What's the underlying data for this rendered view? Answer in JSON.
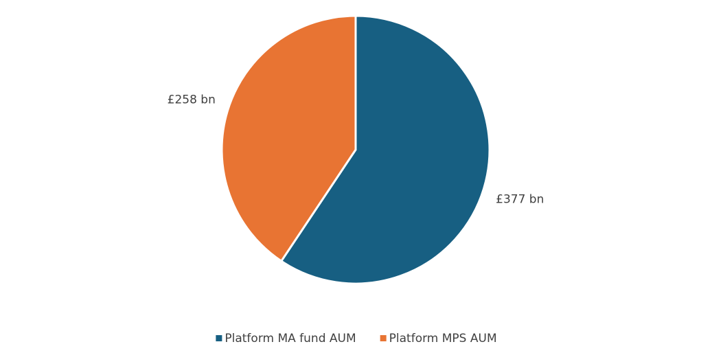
{
  "chart_data": {
    "type": "pie",
    "categories": [
      "Platform MA fund AUM",
      "Platform MPS AUM"
    ],
    "values": [
      377,
      258
    ],
    "value_labels": [
      "£377 bn",
      "£258 bn"
    ],
    "colors": [
      "#175f82",
      "#e87433"
    ],
    "legend": "bottom"
  }
}
